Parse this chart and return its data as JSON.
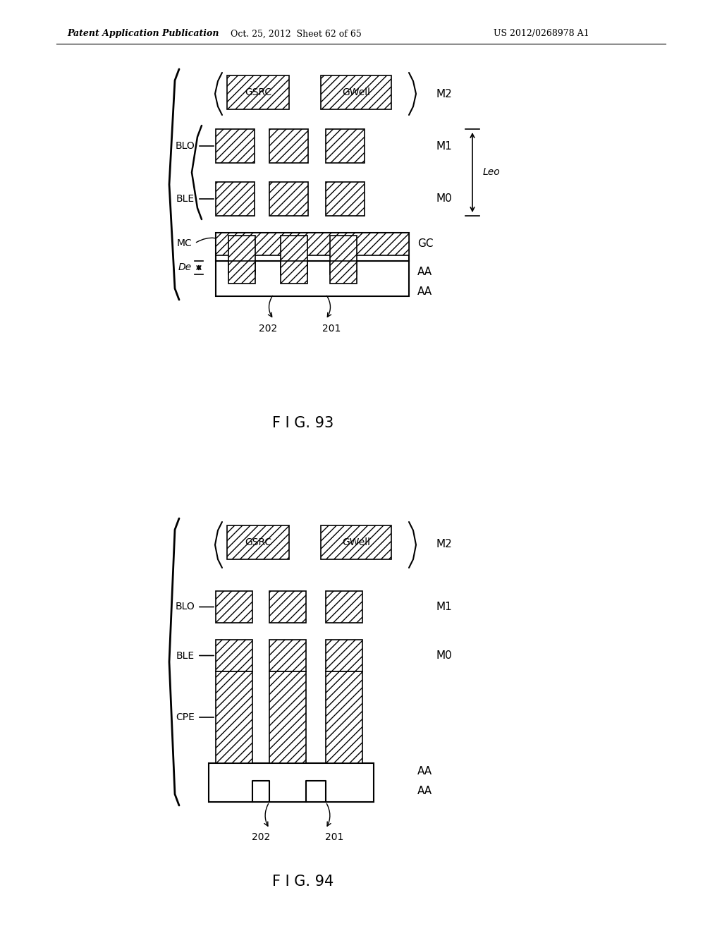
{
  "header_left": "Patent Application Publication",
  "header_middle": "Oct. 25, 2012  Sheet 62 of 65",
  "header_right": "US 2012/0268978 A1",
  "fig93_caption": "F I G. 93",
  "fig94_caption": "F I G. 94",
  "bg_color": "#ffffff",
  "line_color": "#000000"
}
